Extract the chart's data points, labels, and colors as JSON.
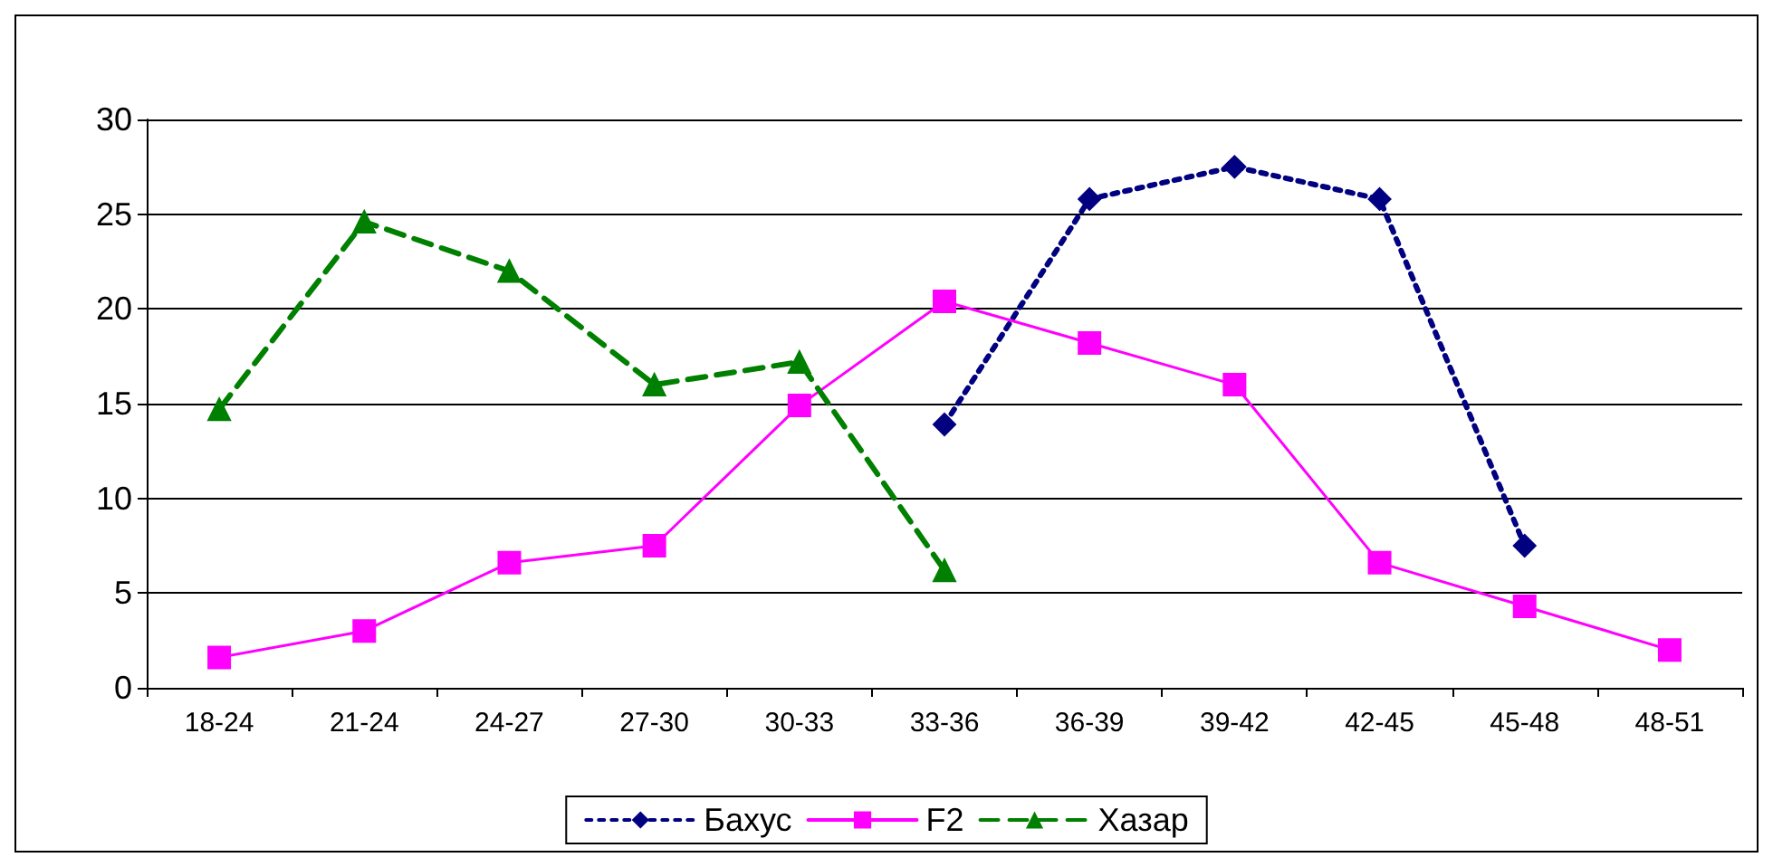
{
  "chart_data": {
    "type": "line",
    "categories": [
      "18-24",
      "21-24",
      "24-27",
      "27-30",
      "30-33",
      "33-36",
      "36-39",
      "39-42",
      "42-45",
      "45-48",
      "48-51"
    ],
    "series": [
      {
        "name": "Бахус",
        "color": "#000080",
        "marker": "diamond",
        "line_style": "dotted",
        "values": [
          null,
          null,
          null,
          null,
          null,
          13.9,
          25.8,
          27.5,
          25.8,
          7.5,
          null
        ]
      },
      {
        "name": "F2",
        "color": "#ff00ff",
        "marker": "square",
        "line_style": "solid",
        "values": [
          1.6,
          3.0,
          6.6,
          7.5,
          14.9,
          20.4,
          18.2,
          16.0,
          6.6,
          4.3,
          2.0
        ]
      },
      {
        "name": "Хазар",
        "color": "#008000",
        "marker": "triangle",
        "line_style": "dashed",
        "values": [
          14.7,
          24.6,
          22.0,
          16.0,
          17.2,
          6.2,
          null,
          null,
          null,
          null,
          null
        ]
      }
    ],
    "ylim": [
      0,
      30
    ],
    "yticks": [
      0,
      5,
      10,
      15,
      20,
      25,
      30
    ],
    "grid": "y",
    "legend": "bottom"
  }
}
